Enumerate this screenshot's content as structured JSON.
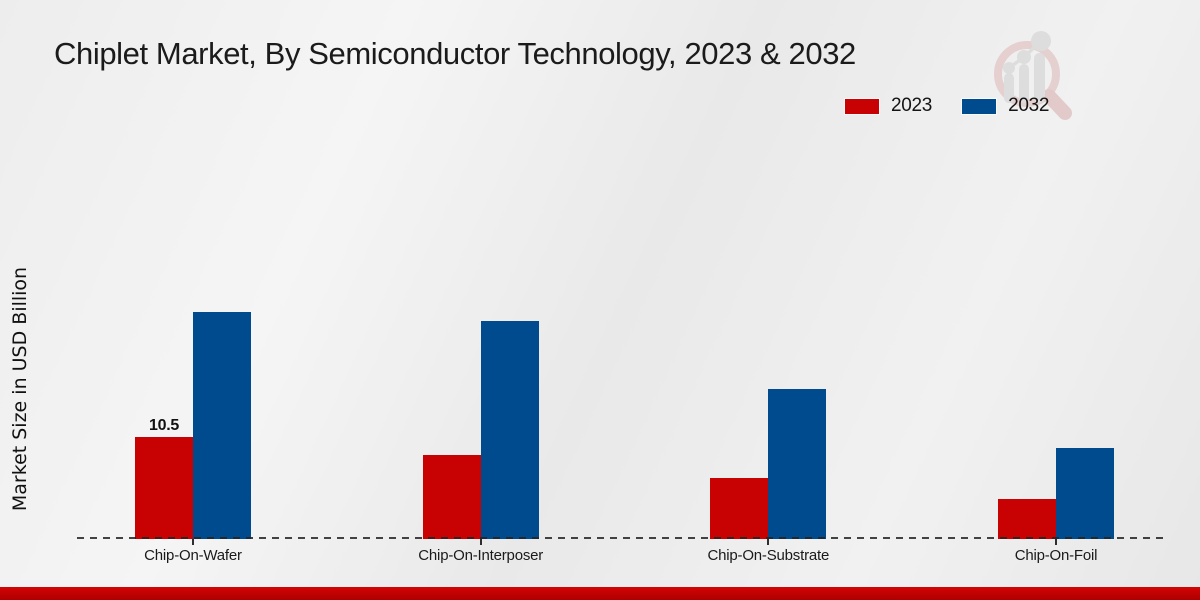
{
  "title": "Chiplet Market, By Semiconductor Technology, 2023 & 2032",
  "y_axis_label": "Market Size in USD Billion",
  "legend": {
    "position": "top-right",
    "items": [
      {
        "label": "2023",
        "color": "#c80202"
      },
      {
        "label": "2032",
        "color": "#004b8d"
      }
    ]
  },
  "footer": {
    "color": "#c20202"
  },
  "watermark_icon": "magnifier-bar-chart-logo",
  "chart_data": {
    "type": "bar",
    "title": "Chiplet Market, By Semiconductor Technology, 2023 & 2032",
    "categories": [
      "Chip-On-Wafer",
      "Chip-On-Interposer",
      "Chip-On-Substrate",
      "Chip-On-Foil"
    ],
    "series": [
      {
        "name": "2023",
        "color": "#c80202",
        "values": [
          10.5,
          8.6,
          6.2,
          4.1
        ]
      },
      {
        "name": "2032",
        "color": "#004b8d",
        "values": [
          23.3,
          22.4,
          15.4,
          9.3
        ]
      }
    ],
    "annotations": [
      {
        "series": "2023",
        "category": "Chip-On-Wafer",
        "text": "10.5"
      }
    ],
    "xlabel": "",
    "ylabel": "Market Size in USD Billion",
    "ylim": [
      0,
      25
    ],
    "grid": false,
    "baseline_style": "dashed",
    "legend_position": "top-right"
  }
}
